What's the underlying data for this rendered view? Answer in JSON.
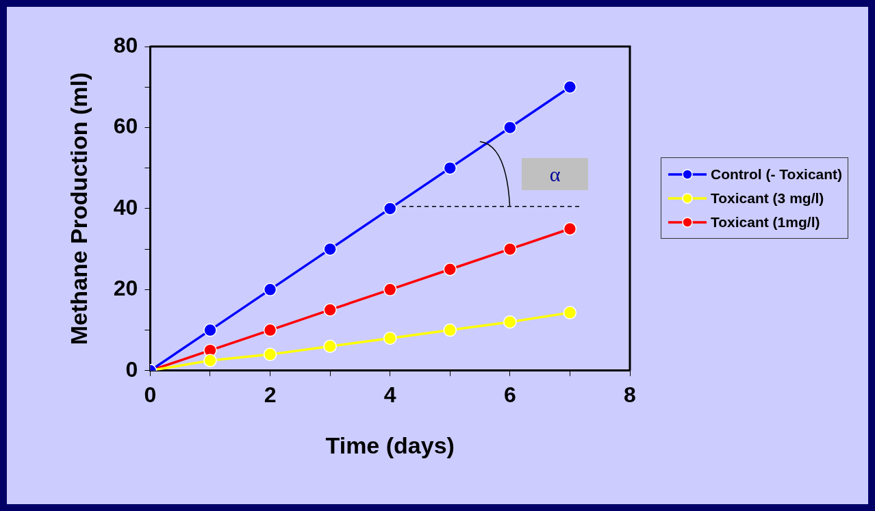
{
  "chart_data": {
    "type": "line",
    "xlabel": "Time (days)",
    "ylabel": "Methane Production (ml)",
    "x": [
      0,
      1,
      2,
      3,
      4,
      5,
      6,
      7
    ],
    "series": [
      {
        "name": "Control (- Toxicant)",
        "color": "#0000ff",
        "values": [
          0,
          10,
          20,
          30,
          40,
          50,
          60,
          70
        ]
      },
      {
        "name": "Toxicant (3 mg/l)",
        "color": "#ffff00",
        "values": [
          0,
          2.5,
          4,
          6,
          8,
          10,
          12,
          14.3
        ]
      },
      {
        "name": "Toxicant (1mg/l)",
        "color": "#ff0000",
        "values": [
          0,
          5,
          10,
          15,
          20,
          25,
          30,
          35
        ]
      }
    ],
    "xlim": [
      0,
      8
    ],
    "xticks": [
      0,
      {
        "value": 1,
        "label": null
      },
      2,
      {
        "value": 3,
        "label": null
      },
      4,
      {
        "value": 5,
        "label": null
      },
      6,
      {
        "value": 7,
        "label": null
      },
      8
    ],
    "ylim": [
      0,
      80
    ],
    "yticks": [
      0,
      {
        "value": 10,
        "label": null
      },
      20,
      {
        "value": 30,
        "label": null
      },
      40,
      {
        "value": 50,
        "label": null
      },
      60,
      {
        "value": 70,
        "label": null
      },
      80
    ],
    "annotations": [
      "α"
    ],
    "grid": false,
    "legend": "right",
    "marker": "circle",
    "line_style": "solid"
  }
}
